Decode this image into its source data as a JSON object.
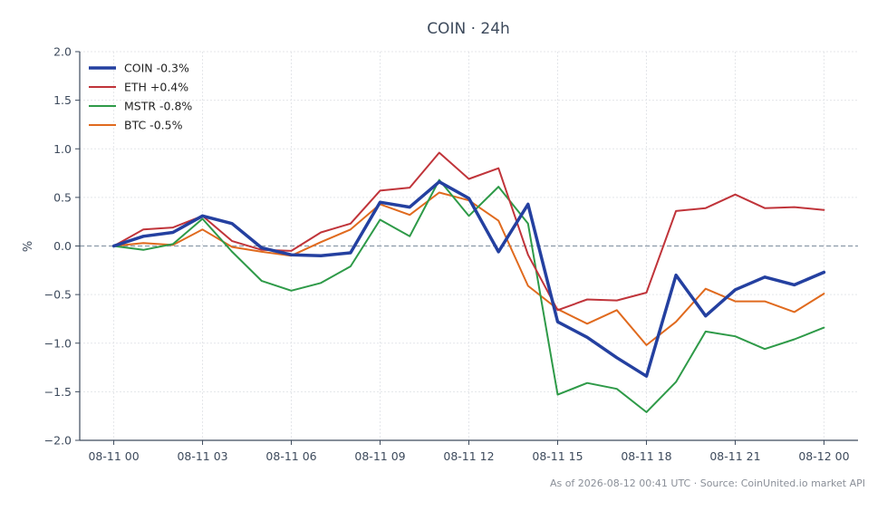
{
  "chart_data": {
    "type": "line",
    "title": "COIN · 24h",
    "ylabel": "%",
    "xlabel": "",
    "ylim": [
      -2.0,
      2.0
    ],
    "yticks": [
      2.0,
      1.5,
      1.0,
      0.5,
      0.0,
      -0.5,
      -1.0,
      -1.5,
      -2.0
    ],
    "ytick_labels": [
      "2.0",
      "1.5",
      "1.0",
      "0.5",
      "0.0",
      "−0.5",
      "−1.0",
      "−1.5",
      "−2.0"
    ],
    "xticks": [
      0,
      3,
      6,
      9,
      12,
      15,
      18,
      21,
      24
    ],
    "xtick_labels": [
      "08-11 00",
      "08-11 03",
      "08-11 06",
      "08-11 09",
      "08-11 12",
      "08-11 15",
      "08-11 18",
      "08-11 21",
      "08-12 00"
    ],
    "xlim": [
      -1.15,
      25.15
    ],
    "x": [
      0,
      1,
      2,
      3,
      4,
      5,
      6,
      7,
      8,
      9,
      10,
      11,
      12,
      13,
      14,
      15,
      16,
      17,
      18,
      19,
      20,
      21,
      22,
      23,
      24
    ],
    "baseline": 0,
    "grid": true,
    "legend_position": "top-left",
    "series": [
      {
        "name": "COIN -0.3%",
        "color": "#2440a0",
        "width": 3.5,
        "values": [
          0.0,
          0.1,
          0.14,
          0.31,
          0.23,
          -0.02,
          -0.09,
          -0.1,
          -0.07,
          0.45,
          0.4,
          0.66,
          0.49,
          -0.06,
          0.43,
          -0.78,
          -0.94,
          -1.15,
          -1.34,
          -0.3,
          -0.72,
          -0.45,
          -0.32,
          -0.4,
          -0.27
        ]
      },
      {
        "name": "ETH +0.4%",
        "color": "#c0343a",
        "width": 2,
        "values": [
          0.0,
          0.17,
          0.19,
          0.31,
          0.05,
          -0.04,
          -0.05,
          0.14,
          0.23,
          0.57,
          0.6,
          0.96,
          0.69,
          0.8,
          -0.09,
          -0.66,
          -0.55,
          -0.56,
          -0.48,
          0.36,
          0.39,
          0.53,
          0.39,
          0.4,
          0.37
        ]
      },
      {
        "name": "MSTR -0.8%",
        "color": "#2e9a48",
        "width": 2,
        "values": [
          0.0,
          -0.04,
          0.02,
          0.28,
          -0.06,
          -0.36,
          -0.46,
          -0.38,
          -0.21,
          0.27,
          0.1,
          0.68,
          0.31,
          0.61,
          0.23,
          -1.53,
          -1.41,
          -1.47,
          -1.71,
          -1.4,
          -0.88,
          -0.93,
          -1.06,
          -0.96,
          -0.84
        ]
      },
      {
        "name": "BTC -0.5%",
        "color": "#e06a1e",
        "width": 2,
        "values": [
          0.0,
          0.03,
          0.01,
          0.17,
          -0.01,
          -0.06,
          -0.1,
          0.04,
          0.17,
          0.43,
          0.32,
          0.55,
          0.47,
          0.26,
          -0.41,
          -0.65,
          -0.8,
          -0.66,
          -1.02,
          -0.78,
          -0.44,
          -0.57,
          -0.57,
          -0.68,
          -0.49
        ]
      }
    ],
    "footer": "As of 2026-08-12 00:41 UTC · Source: CoinUnited.io market API"
  }
}
